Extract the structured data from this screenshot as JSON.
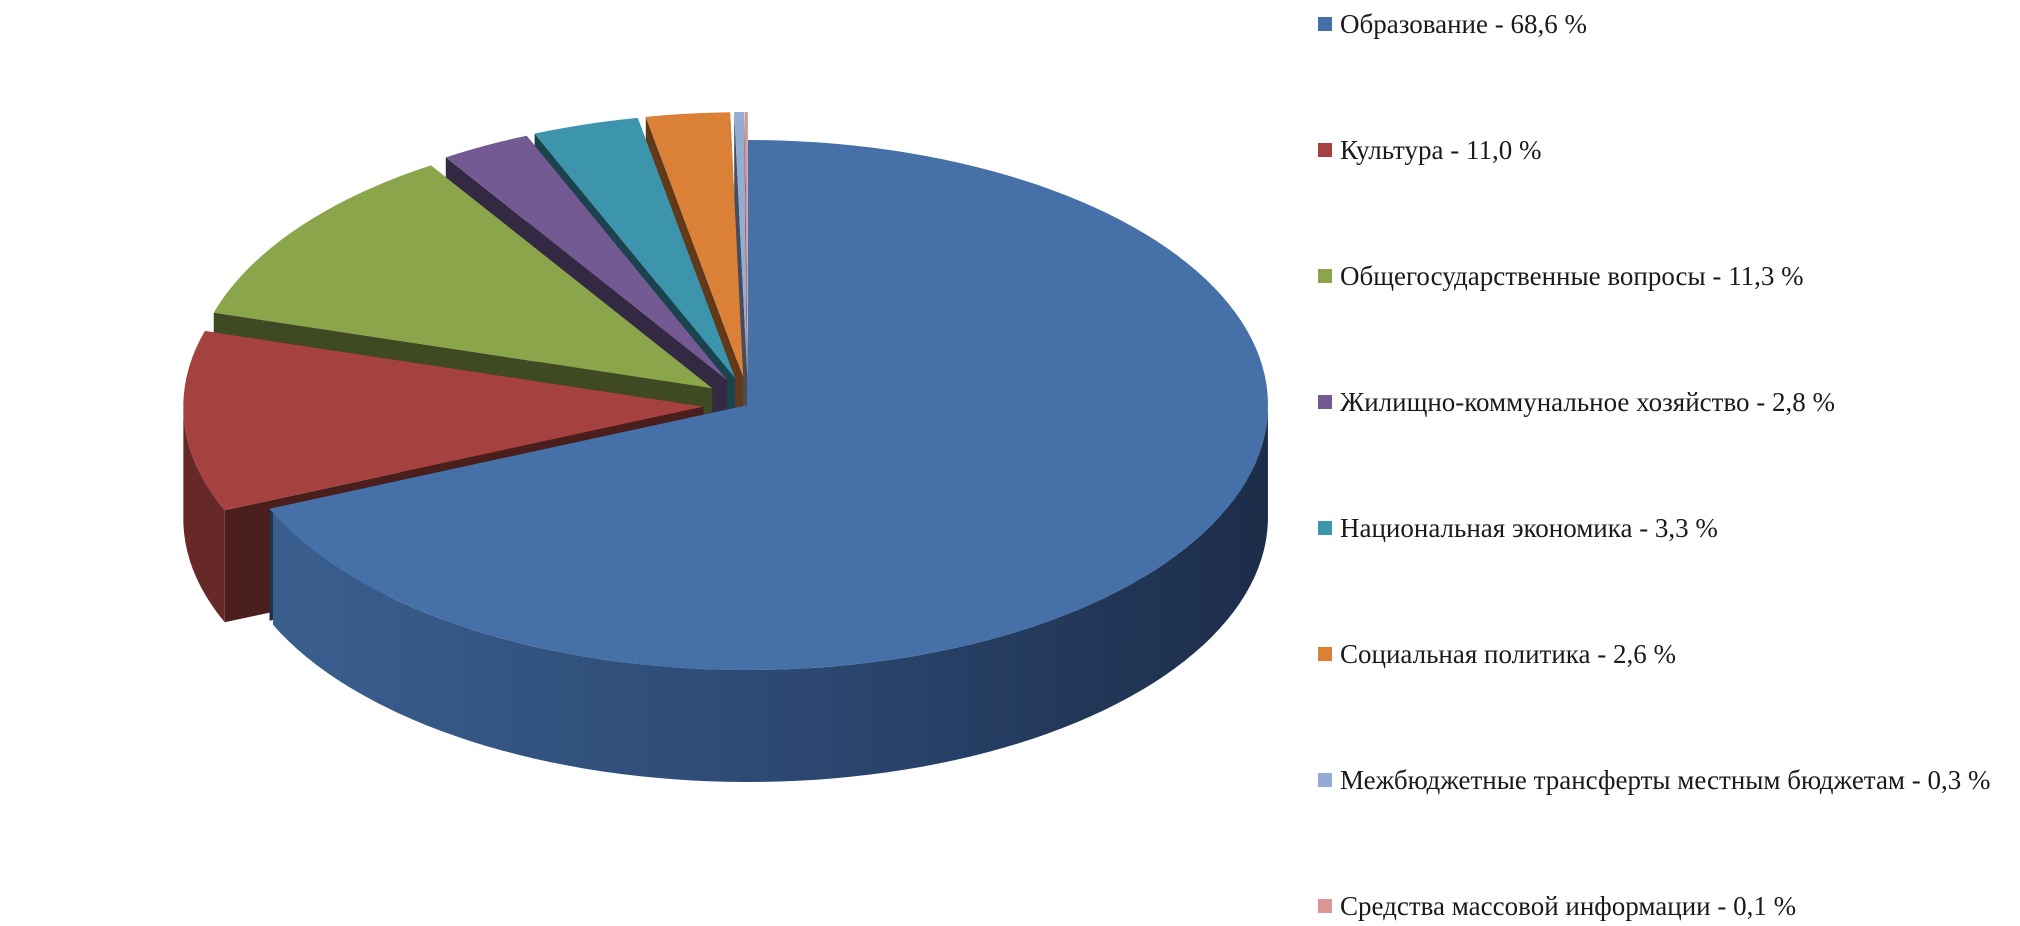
{
  "chart_data": {
    "type": "pie",
    "title": "",
    "legend_position": "right",
    "three_d": true,
    "exploded": true,
    "unit": "%",
    "series": [
      {
        "values": [
          68.6,
          11.0,
          11.3,
          2.8,
          3.3,
          2.6,
          0.3,
          0.1
        ]
      }
    ],
    "slices": [
      {
        "label": "Образование - 68,6 %",
        "value": 68.6,
        "color": "#4570A8"
      },
      {
        "label": "Культура - 11,0 %",
        "value": 11.0,
        "color": "#A5423F"
      },
      {
        "label": "Общегосударственные вопросы - 11,3 %",
        "value": 11.3,
        "color": "#8BA54B"
      },
      {
        "label": "Жилищно-коммунальное хозяйство - 2,8 %",
        "value": 2.8,
        "color": "#745A93"
      },
      {
        "label": "Национальная экономика - 3,3 %",
        "value": 3.3,
        "color": "#3C95AC"
      },
      {
        "label": "Социальная политика - 2,6 %",
        "value": 2.6,
        "color": "#DB8137"
      },
      {
        "label": "Межбюджетные трансферты местным бюджетам - 0,3 %",
        "value": 0.3,
        "color": "#94ACD4"
      },
      {
        "label": "Средства массовой информации - 0,1 %",
        "value": 0.1,
        "color": "#D99694"
      }
    ]
  }
}
